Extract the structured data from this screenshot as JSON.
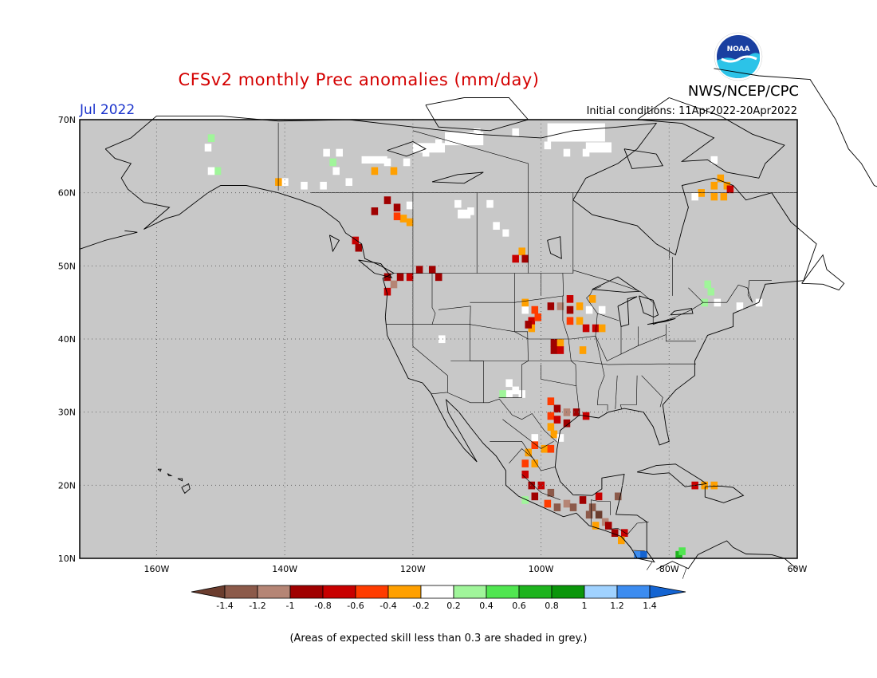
{
  "header": {
    "title": "CFSv2 monthly Prec anomalies (mm/day)",
    "month": "Jul 2022",
    "org": "NWS/NCEP/CPC",
    "initial_conditions": "Initial conditions: 11Apr2022-20Apr2022",
    "logo_text": "NOAA"
  },
  "map": {
    "lon_range": [
      -172,
      -60
    ],
    "lat_range": [
      10,
      70
    ],
    "lat_ticks": [
      {
        "value": 70,
        "label": "70N"
      },
      {
        "value": 60,
        "label": "60N"
      },
      {
        "value": 50,
        "label": "50N"
      },
      {
        "value": 40,
        "label": "40N"
      },
      {
        "value": 30,
        "label": "30N"
      },
      {
        "value": 20,
        "label": "20N"
      },
      {
        "value": 10,
        "label": "10N"
      }
    ],
    "lon_ticks": [
      {
        "value": -160,
        "label": "160W"
      },
      {
        "value": -140,
        "label": "140W"
      },
      {
        "value": -120,
        "label": "120W"
      },
      {
        "value": -100,
        "label": "100W"
      },
      {
        "value": -80,
        "label": "80W"
      },
      {
        "value": -60,
        "label": "60W"
      }
    ],
    "background": "#c8c8c8",
    "grid_style": "dotted"
  },
  "colorbar": {
    "colors": [
      "#6b3d2e",
      "#8c5a4a",
      "#b58575",
      "#a00000",
      "#c80000",
      "#ff3c00",
      "#ffa000",
      "#ffffff",
      "#a0f59a",
      "#50e650",
      "#1eb41e",
      "#0a960a",
      "#a0d2ff",
      "#3c8cf0",
      "#1464d2"
    ],
    "labels": [
      "-1.4",
      "-1.2",
      "-1",
      "-0.8",
      "-0.6",
      "-0.4",
      "-0.2",
      "0.2",
      "0.4",
      "0.6",
      "0.8",
      "1",
      "1.2",
      "1.4"
    ]
  },
  "anomalies": [
    {
      "lon": -151.5,
      "lat": 67.5,
      "value": 0.3
    },
    {
      "lon": -152,
      "lat": 66.2,
      "value": 0.0
    },
    {
      "lon": -150.5,
      "lat": 63.0,
      "value": 0.3
    },
    {
      "lon": -151.5,
      "lat": 63.0,
      "value": 0.0
    },
    {
      "lon": -133.5,
      "lat": 65.5,
      "value": 0.0
    },
    {
      "lon": -131.5,
      "lat": 65.5,
      "value": 0.0
    },
    {
      "lon": -132.5,
      "lat": 64.2,
      "value": 0.3
    },
    {
      "lon": -132,
      "lat": 63.0,
      "value": 0.0
    },
    {
      "lon": -126,
      "lat": 63.0,
      "value": -0.3
    },
    {
      "lon": -123,
      "lat": 63.0,
      "value": -0.3
    },
    {
      "lon": -124,
      "lat": 64.2,
      "value": 0.0
    },
    {
      "lon": -121,
      "lat": 64.2,
      "value": 0.0
    },
    {
      "lon": -118,
      "lat": 65.5,
      "value": 0.0
    },
    {
      "lon": -116,
      "lat": 66.8,
      "value": 0.0
    },
    {
      "lon": -114,
      "lat": 67.5,
      "value": 0.0
    },
    {
      "lon": -112,
      "lat": 67.5,
      "value": 0.0
    },
    {
      "lon": -110,
      "lat": 68.3,
      "value": 0.0
    },
    {
      "lon": -104,
      "lat": 68.3,
      "value": 0.0
    },
    {
      "lon": -99,
      "lat": 66.5,
      "value": 0.0
    },
    {
      "lon": -96,
      "lat": 65.5,
      "value": 0.0
    },
    {
      "lon": -93,
      "lat": 65.5,
      "value": 0.0
    },
    {
      "lon": -140,
      "lat": 61.5,
      "value": 0.0
    },
    {
      "lon": -137,
      "lat": 61.0,
      "value": 0.0
    },
    {
      "lon": -134,
      "lat": 61.0,
      "value": 0.0
    },
    {
      "lon": -130,
      "lat": 61.5,
      "value": 0.0
    },
    {
      "lon": -141,
      "lat": 61.5,
      "value": -0.3
    },
    {
      "lon": -124,
      "lat": 59.0,
      "value": -0.9
    },
    {
      "lon": -122.5,
      "lat": 58.0,
      "value": -0.9
    },
    {
      "lon": -126,
      "lat": 57.5,
      "value": -0.9
    },
    {
      "lon": -121.5,
      "lat": 56.5,
      "value": -0.3
    },
    {
      "lon": -120.5,
      "lat": 56.0,
      "value": -0.3
    },
    {
      "lon": -122.5,
      "lat": 56.8,
      "value": -0.5
    },
    {
      "lon": -120.5,
      "lat": 58.3,
      "value": 0.0
    },
    {
      "lon": -113,
      "lat": 58.5,
      "value": 0.0
    },
    {
      "lon": -111,
      "lat": 57.5,
      "value": 0.0
    },
    {
      "lon": -108,
      "lat": 58.5,
      "value": 0.0
    },
    {
      "lon": -107,
      "lat": 55.5,
      "value": 0.0
    },
    {
      "lon": -129,
      "lat": 53.5,
      "value": -0.7
    },
    {
      "lon": -128.5,
      "lat": 52.5,
      "value": -0.9
    },
    {
      "lon": -103,
      "lat": 52.0,
      "value": -0.3
    },
    {
      "lon": -104,
      "lat": 51.0,
      "value": -0.7
    },
    {
      "lon": -102.5,
      "lat": 51.0,
      "value": -0.9
    },
    {
      "lon": -124,
      "lat": 48.5,
      "value": -0.9
    },
    {
      "lon": -123,
      "lat": 47.5,
      "value": -1.1
    },
    {
      "lon": -122,
      "lat": 48.5,
      "value": -0.9
    },
    {
      "lon": -120.5,
      "lat": 48.5,
      "value": -0.7
    },
    {
      "lon": -119,
      "lat": 49.5,
      "value": -0.9
    },
    {
      "lon": -117,
      "lat": 49.5,
      "value": -0.9
    },
    {
      "lon": -116,
      "lat": 48.5,
      "value": -0.9
    },
    {
      "lon": -124,
      "lat": 46.5,
      "value": -0.7
    },
    {
      "lon": -102.5,
      "lat": 44.0,
      "value": 0.0
    },
    {
      "lon": -101,
      "lat": 44.0,
      "value": -0.5
    },
    {
      "lon": -102.5,
      "lat": 45.0,
      "value": -0.3
    },
    {
      "lon": -101.5,
      "lat": 42.5,
      "value": -0.7
    },
    {
      "lon": -100.5,
      "lat": 43.0,
      "value": -0.5
    },
    {
      "lon": -101.5,
      "lat": 41.5,
      "value": -0.3
    },
    {
      "lon": -102,
      "lat": 42.0,
      "value": -0.9
    },
    {
      "lon": -98.5,
      "lat": 44.5,
      "value": -0.9
    },
    {
      "lon": -97,
      "lat": 44.5,
      "value": -1.1
    },
    {
      "lon": -95.5,
      "lat": 45.5,
      "value": -0.7
    },
    {
      "lon": -95.5,
      "lat": 44.0,
      "value": -0.9
    },
    {
      "lon": -94,
      "lat": 44.5,
      "value": -0.3
    },
    {
      "lon": -92.5,
      "lat": 44.0,
      "value": 0.0
    },
    {
      "lon": -95.5,
      "lat": 42.5,
      "value": -0.5
    },
    {
      "lon": -94,
      "lat": 42.5,
      "value": -0.3
    },
    {
      "lon": -93,
      "lat": 41.5,
      "value": -0.7
    },
    {
      "lon": -91.5,
      "lat": 41.5,
      "value": -0.7
    },
    {
      "lon": -90.5,
      "lat": 41.5,
      "value": -0.3
    },
    {
      "lon": -92,
      "lat": 45.5,
      "value": -0.3
    },
    {
      "lon": -90.5,
      "lat": 44.0,
      "value": 0.0
    },
    {
      "lon": -98,
      "lat": 39.5,
      "value": -0.9
    },
    {
      "lon": -97,
      "lat": 39.5,
      "value": -0.3
    },
    {
      "lon": -98,
      "lat": 38.5,
      "value": -0.9
    },
    {
      "lon": -97,
      "lat": 38.5,
      "value": -0.7
    },
    {
      "lon": -93.5,
      "lat": 38.5,
      "value": -0.3
    },
    {
      "lon": -115.5,
      "lat": 40.0,
      "value": 0.0
    },
    {
      "lon": -105,
      "lat": 34.0,
      "value": 0.0
    },
    {
      "lon": -104,
      "lat": 33.0,
      "value": 0.0
    },
    {
      "lon": -105,
      "lat": 32.5,
      "value": 0.0
    },
    {
      "lon": -106,
      "lat": 32.5,
      "value": 0.3
    },
    {
      "lon": -103,
      "lat": 32.5,
      "value": 0.0
    },
    {
      "lon": -98.5,
      "lat": 31.5,
      "value": -0.5
    },
    {
      "lon": -97.5,
      "lat": 30.5,
      "value": -0.9
    },
    {
      "lon": -96,
      "lat": 30.0,
      "value": -1.1
    },
    {
      "lon": -94.5,
      "lat": 30.0,
      "value": -0.9
    },
    {
      "lon": -98.5,
      "lat": 29.5,
      "value": -0.5
    },
    {
      "lon": -97.5,
      "lat": 29.0,
      "value": -0.7
    },
    {
      "lon": -96,
      "lat": 28.5,
      "value": -0.9
    },
    {
      "lon": -93,
      "lat": 29.5,
      "value": -0.7
    },
    {
      "lon": -98.5,
      "lat": 28.0,
      "value": -0.3
    },
    {
      "lon": -98,
      "lat": 27.0,
      "value": -0.3
    },
    {
      "lon": -97,
      "lat": 26.5,
      "value": 0.0
    },
    {
      "lon": -101,
      "lat": 26.5,
      "value": 0.0
    },
    {
      "lon": -101,
      "lat": 25.5,
      "value": -0.5
    },
    {
      "lon": -99.5,
      "lat": 25.0,
      "value": -0.3
    },
    {
      "lon": -98.5,
      "lat": 25.0,
      "value": -0.5
    },
    {
      "lon": -102,
      "lat": 24.5,
      "value": -0.3
    },
    {
      "lon": -102.5,
      "lat": 23.0,
      "value": -0.5
    },
    {
      "lon": -101,
      "lat": 23.0,
      "value": -0.3
    },
    {
      "lon": -102.5,
      "lat": 21.5,
      "value": -0.7
    },
    {
      "lon": -101.5,
      "lat": 20.0,
      "value": -0.9
    },
    {
      "lon": -100,
      "lat": 20.0,
      "value": -0.7
    },
    {
      "lon": -101,
      "lat": 18.5,
      "value": -0.9
    },
    {
      "lon": -102.5,
      "lat": 18.0,
      "value": 0.3
    },
    {
      "lon": -98.5,
      "lat": 19.0,
      "value": -1.3
    },
    {
      "lon": -99,
      "lat": 17.5,
      "value": -0.5
    },
    {
      "lon": -97.5,
      "lat": 17.0,
      "value": -1.3
    },
    {
      "lon": -96,
      "lat": 17.5,
      "value": -1.1
    },
    {
      "lon": -95,
      "lat": 17.0,
      "value": -1.3
    },
    {
      "lon": -93.5,
      "lat": 18.0,
      "value": -0.9
    },
    {
      "lon": -92,
      "lat": 17.0,
      "value": -1.3
    },
    {
      "lon": -91,
      "lat": 16.0,
      "value": -1.5
    },
    {
      "lon": -92.5,
      "lat": 16.0,
      "value": -1.3
    },
    {
      "lon": -90,
      "lat": 15.0,
      "value": -1.1
    },
    {
      "lon": -91.5,
      "lat": 14.5,
      "value": -0.3
    },
    {
      "lon": -89.5,
      "lat": 14.5,
      "value": -0.9
    },
    {
      "lon": -88.5,
      "lat": 13.5,
      "value": -0.9
    },
    {
      "lon": -87,
      "lat": 13.5,
      "value": -0.7
    },
    {
      "lon": -87.5,
      "lat": 12.5,
      "value": -0.3
    },
    {
      "lon": -88,
      "lat": 18.5,
      "value": -1.3
    },
    {
      "lon": -91,
      "lat": 18.5,
      "value": -0.7
    },
    {
      "lon": -85,
      "lat": 10.5,
      "value": 1.3
    },
    {
      "lon": -84,
      "lat": 10.5,
      "value": 1.5
    },
    {
      "lon": -78.5,
      "lat": 10.5,
      "value": 0.7
    },
    {
      "lon": -78,
      "lat": 11.0,
      "value": 0.5
    },
    {
      "lon": -74.5,
      "lat": 20.0,
      "value": -0.3
    },
    {
      "lon": -76,
      "lat": 20.0,
      "value": -0.7
    },
    {
      "lon": -73,
      "lat": 20.0,
      "value": -0.3
    },
    {
      "lon": -72,
      "lat": 62.0,
      "value": -0.3
    },
    {
      "lon": -73,
      "lat": 61.0,
      "value": -0.3
    },
    {
      "lon": -71,
      "lat": 61.0,
      "value": -0.3
    },
    {
      "lon": -73,
      "lat": 59.5,
      "value": -0.3
    },
    {
      "lon": -71.5,
      "lat": 59.5,
      "value": -0.3
    },
    {
      "lon": -70.5,
      "lat": 60.5,
      "value": -0.7
    },
    {
      "lon": -75,
      "lat": 60.0,
      "value": -0.3
    },
    {
      "lon": -76,
      "lat": 59.5,
      "value": 0.0
    },
    {
      "lon": -73,
      "lat": 64.5,
      "value": 0.0
    },
    {
      "lon": -74,
      "lat": 47.5,
      "value": 0.3
    },
    {
      "lon": -73.5,
      "lat": 46.5,
      "value": 0.3
    },
    {
      "lon": -74.5,
      "lat": 45.0,
      "value": 0.3
    },
    {
      "lon": -72.5,
      "lat": 45.0,
      "value": 0.0
    },
    {
      "lon": -66,
      "lat": 45.0,
      "value": 0.0
    },
    {
      "lon": -69,
      "lat": 44.5,
      "value": 0.0
    }
  ],
  "white_patches": [
    {
      "lon": -115,
      "lat": 66.5,
      "w": 6,
      "h": 1.8
    },
    {
      "lon": -99,
      "lat": 67,
      "w": 9,
      "h": 2.5
    },
    {
      "lon": -93,
      "lat": 65.5,
      "w": 4,
      "h": 1.4
    },
    {
      "lon": -120,
      "lat": 65.5,
      "w": 5,
      "h": 1.3
    },
    {
      "lon": -128,
      "lat": 64.0,
      "w": 4,
      "h": 1.0
    },
    {
      "lon": -113,
      "lat": 56.5,
      "w": 2,
      "h": 1.2
    },
    {
      "lon": -106,
      "lat": 54.0,
      "w": 1,
      "h": 1.0
    }
  ],
  "footnote": "(Areas of expected skill less than 0.3 are shaded in grey.)"
}
